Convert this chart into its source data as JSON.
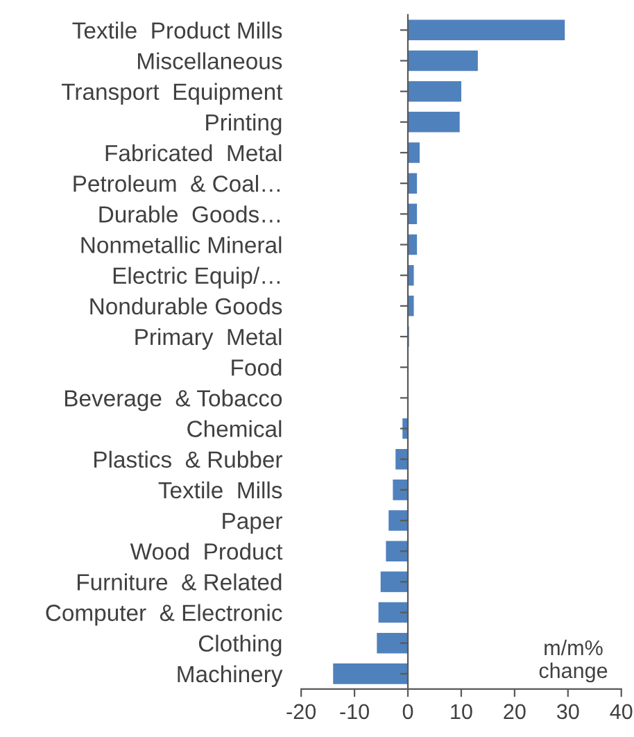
{
  "chart_data": {
    "type": "bar",
    "orientation": "horizontal",
    "categories": [
      "Textile  Product Mills",
      "Miscellaneous",
      "Transport  Equipment",
      "Printing",
      "Fabricated  Metal",
      "Petroleum  & Coal…",
      "Durable  Goods…",
      "Nonmetallic Mineral",
      "Electric Equip/…",
      "Nondurable Goods",
      "Primary  Metal",
      "Food",
      "Beverage  & Tobacco",
      "Chemical",
      "Plastics  & Rubber",
      "Textile  Mills",
      "Paper",
      "Wood  Product",
      "Furniture  & Related",
      "Computer  & Electronic",
      "Clothing",
      "Machinery"
    ],
    "values": [
      29.5,
      13.2,
      10.1,
      9.8,
      2.3,
      1.8,
      1.8,
      1.8,
      1.2,
      1.2,
      0.3,
      -0.1,
      -0.2,
      -1.1,
      -2.4,
      -2.9,
      -3.7,
      -4.2,
      -5.2,
      -5.6,
      -5.9,
      -14.1
    ],
    "color": "#4f81bd",
    "xlim": [
      -20,
      40
    ],
    "xticks": [
      -20,
      -10,
      0,
      10,
      20,
      30,
      40
    ],
    "annotations": [
      "m/m%\nchange"
    ]
  }
}
